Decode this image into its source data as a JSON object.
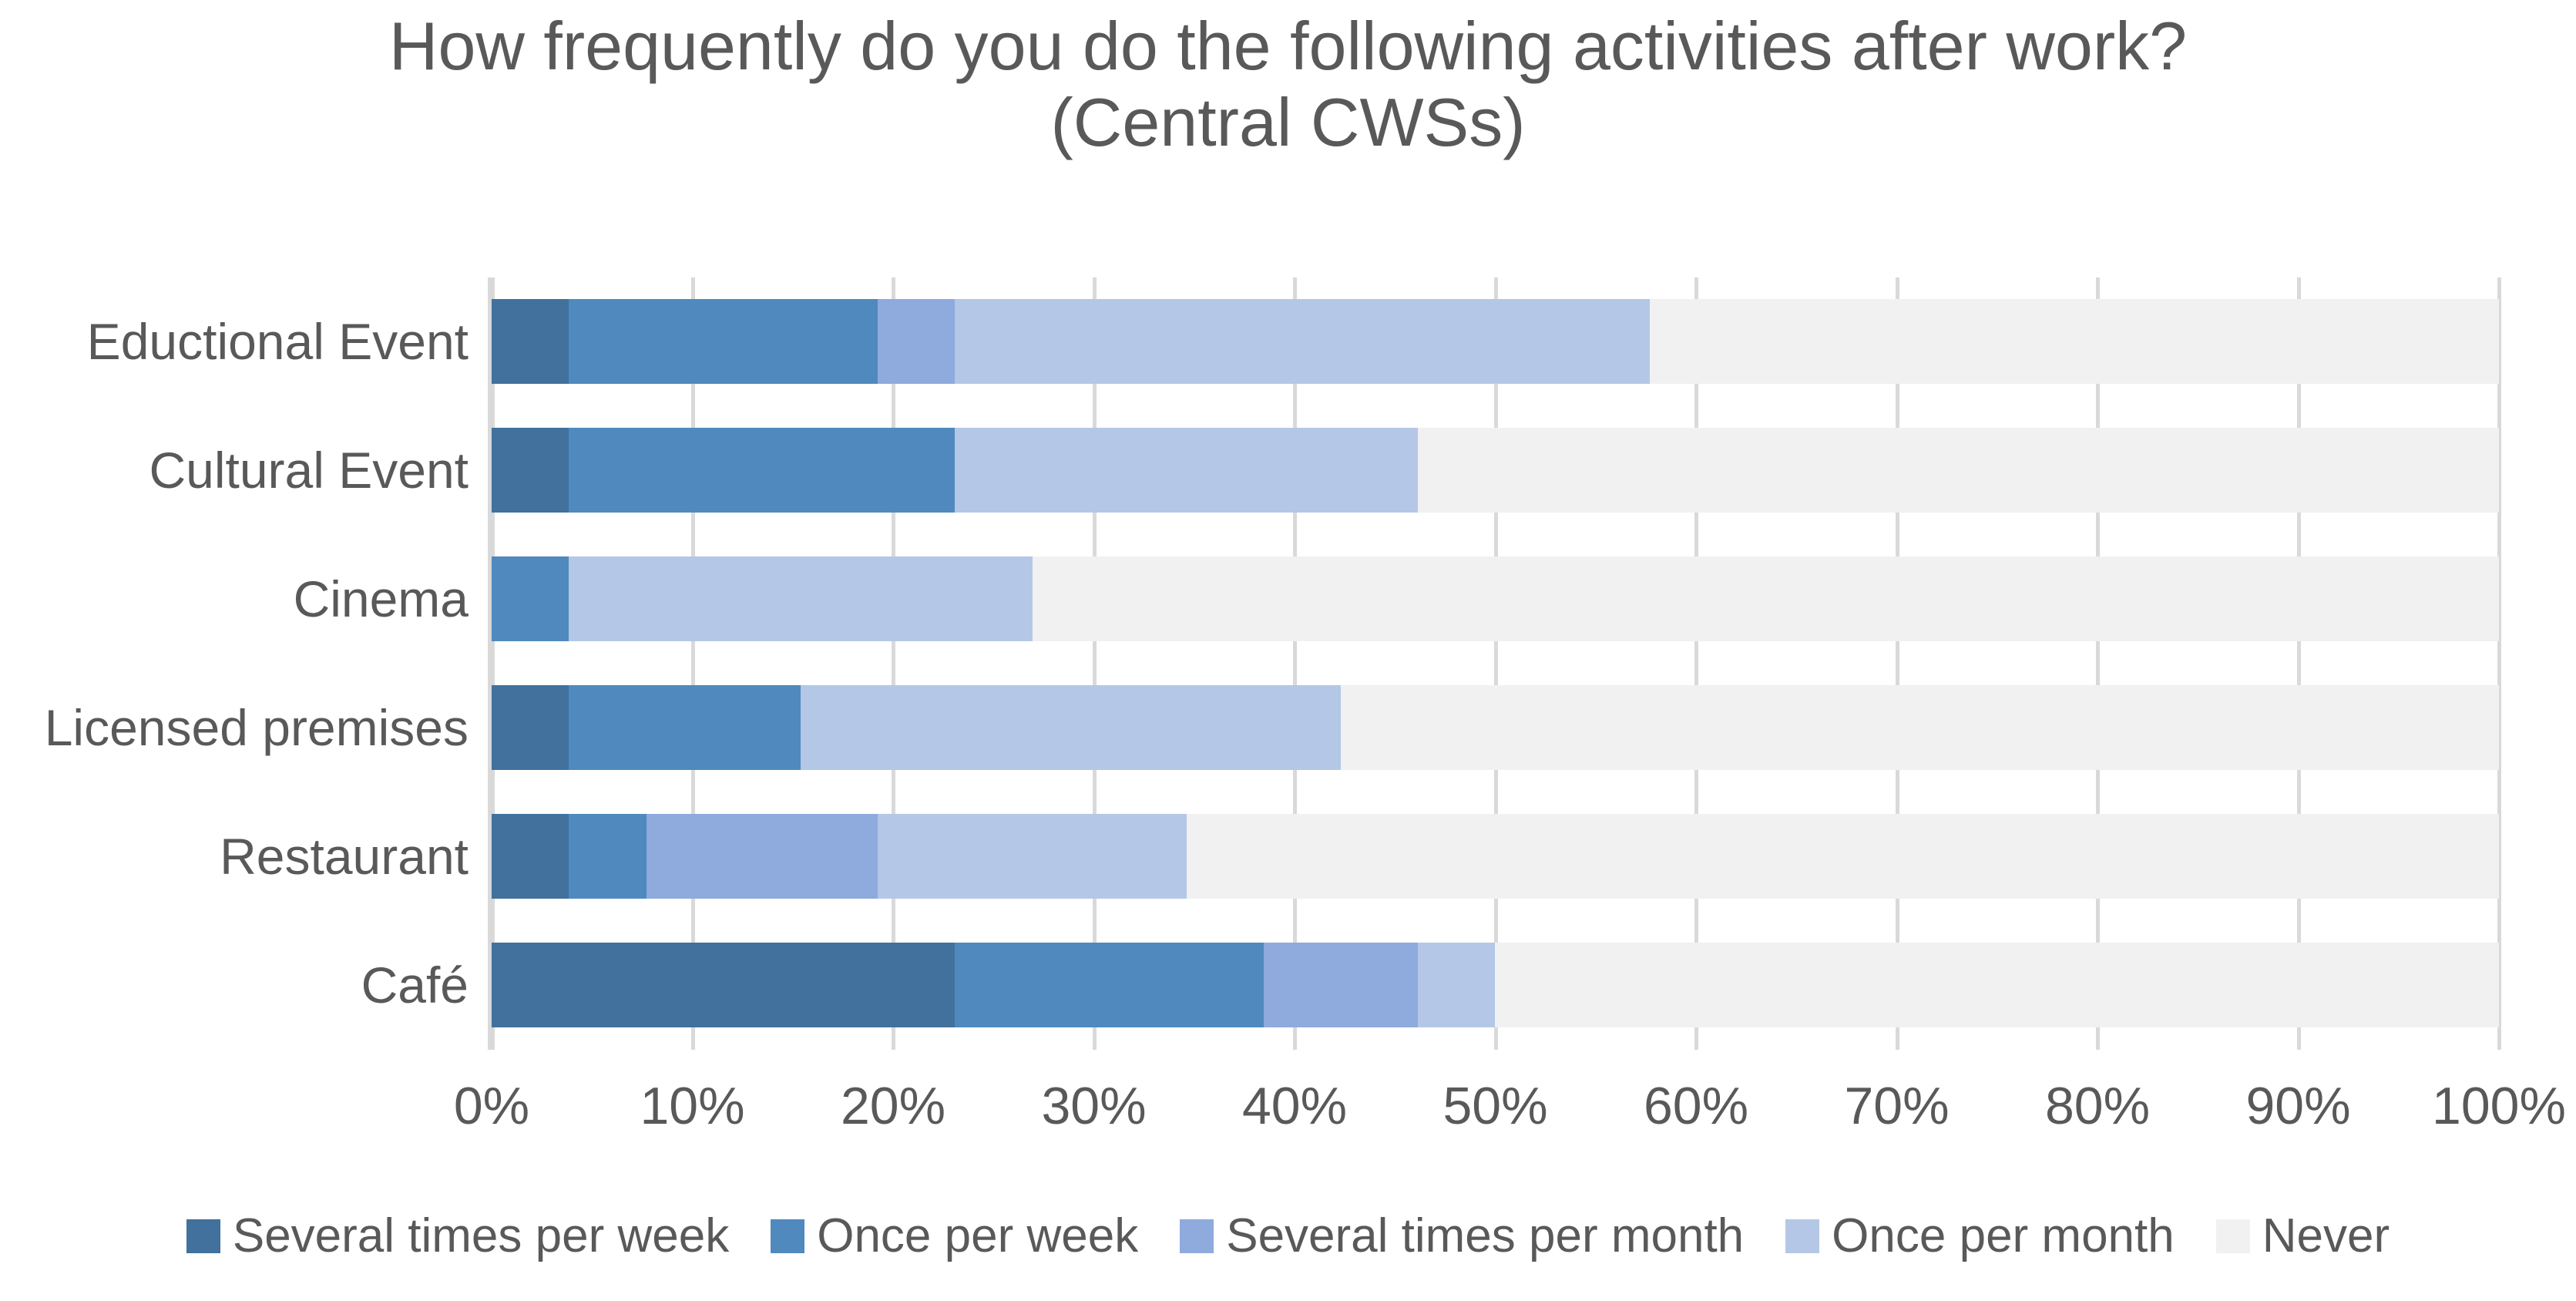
{
  "title": {
    "line1": "How frequently do you do the following activities after work?",
    "line2": "(Central CWSs)"
  },
  "text_color": "#595959",
  "grid_color": "#D9D9D9",
  "chart_data": {
    "type": "bar",
    "stacked": true,
    "orientation": "horizontal",
    "title": "How frequently do you do the following activities after work? (Central CWSs)",
    "xlabel": "",
    "ylabel": "",
    "xlim": [
      0,
      100
    ],
    "grid": true,
    "legend_position": "bottom",
    "x_ticks": [
      "0%",
      "10%",
      "20%",
      "30%",
      "40%",
      "50%",
      "60%",
      "70%",
      "80%",
      "90%",
      "100%"
    ],
    "categories": [
      "Eductional Event",
      "Cultural Event",
      "Cinema",
      "Licensed premises",
      "Restaurant",
      "Café"
    ],
    "series": [
      {
        "name": "Several times per week",
        "color": "#41719C",
        "values": [
          3.85,
          3.85,
          0,
          3.85,
          3.85,
          23.08
        ]
      },
      {
        "name": "Once per week",
        "color": "#5089BE",
        "values": [
          15.38,
          19.23,
          3.85,
          11.54,
          3.85,
          15.38
        ]
      },
      {
        "name": "Several times per month",
        "color": "#8FAADC",
        "values": [
          3.85,
          0,
          0,
          0,
          11.54,
          7.69
        ]
      },
      {
        "name": "Once per month",
        "color": "#B4C7E7",
        "values": [
          34.62,
          23.08,
          23.08,
          26.92,
          15.38,
          3.85
        ]
      },
      {
        "name": "Never",
        "color": "#F1F1F1",
        "values": [
          42.31,
          53.85,
          73.08,
          57.69,
          65.38,
          50.0
        ]
      }
    ]
  }
}
